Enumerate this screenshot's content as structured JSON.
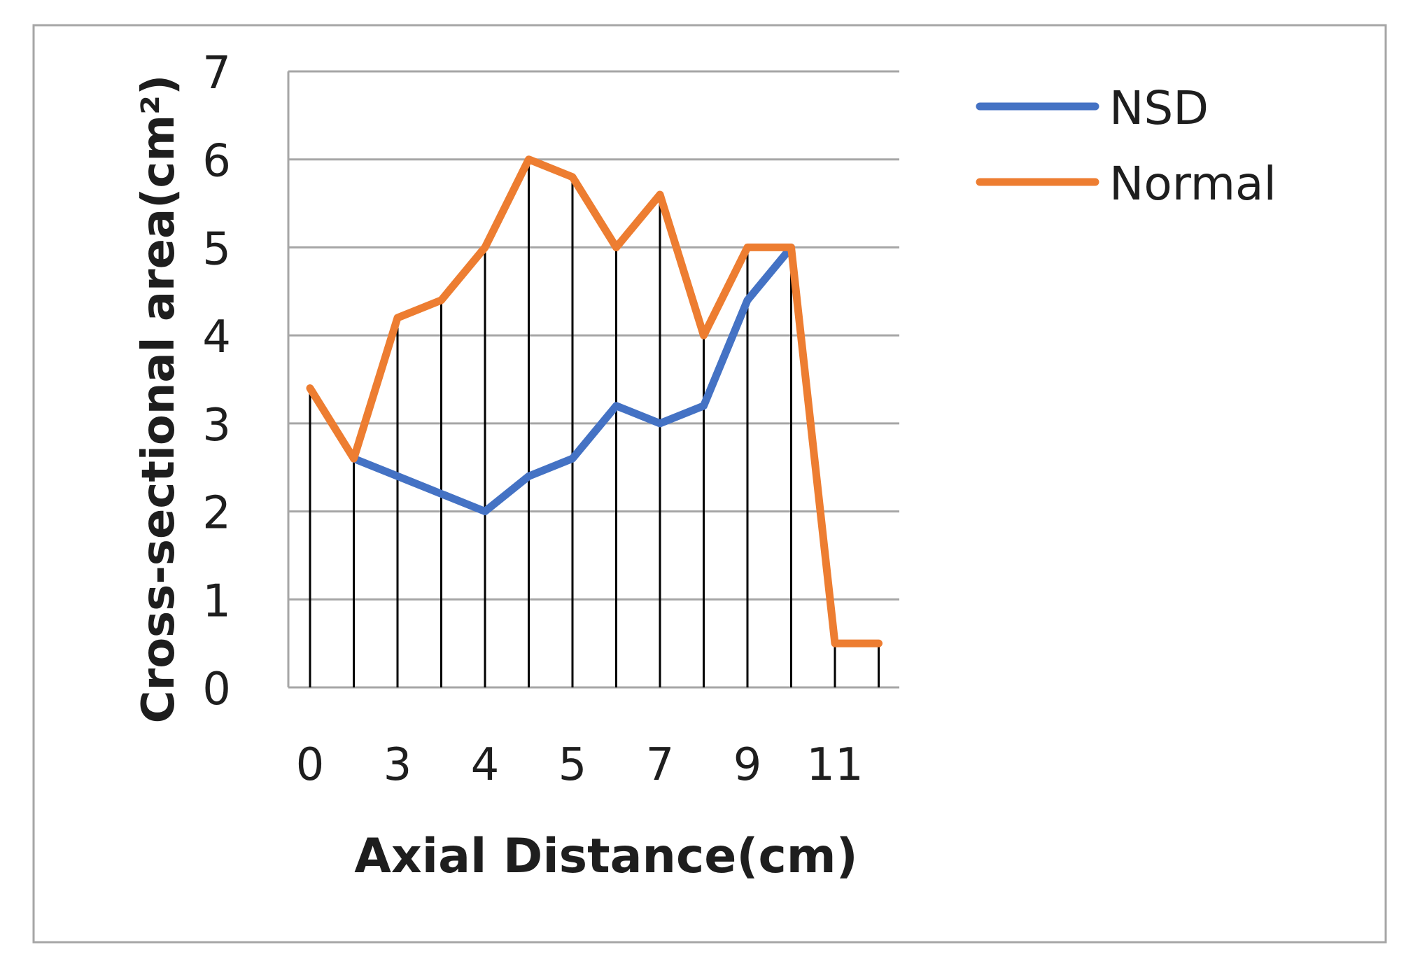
{
  "chart_data": {
    "type": "line",
    "xlabel": "Axial Distance(cm)",
    "ylabel": "Cross-sectional area(cm²)",
    "ylim": [
      0,
      7
    ],
    "y_ticks": [
      "0",
      "1",
      "2",
      "3",
      "4",
      "5",
      "6",
      "7"
    ],
    "categories": [
      "0",
      "",
      "3",
      "",
      "4",
      "",
      "5",
      "",
      "7",
      "",
      "9",
      "",
      "11",
      ""
    ],
    "grid": "horizontal",
    "legend_position": "top-right",
    "drop_lines": true,
    "series": [
      {
        "name": "NSD",
        "color": "#4472c4",
        "values": [
          null,
          2.6,
          2.4,
          2.2,
          2.0,
          2.4,
          2.6,
          3.2,
          3.0,
          3.2,
          4.4,
          5.0,
          null,
          null
        ]
      },
      {
        "name": "Normal",
        "color": "#ed7d31",
        "values": [
          3.4,
          2.6,
          4.2,
          4.4,
          5.0,
          6.0,
          5.8,
          5.0,
          5.6,
          4.0,
          5.0,
          5.0,
          0.5,
          0.5
        ]
      }
    ]
  }
}
